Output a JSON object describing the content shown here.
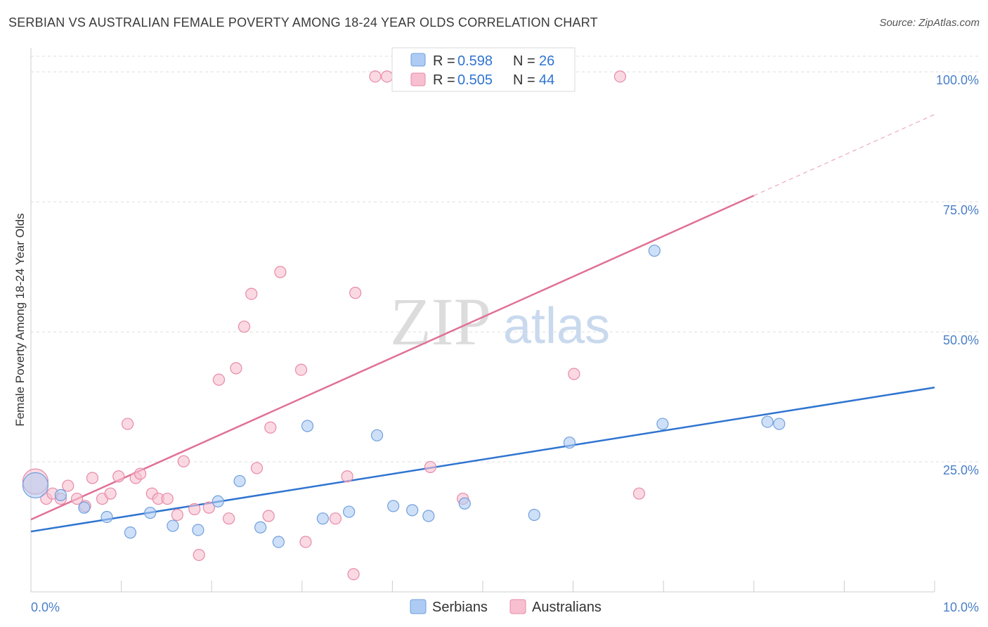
{
  "header": {
    "title": "SERBIAN VS AUSTRALIAN FEMALE POVERTY AMONG 18-24 YEAR OLDS CORRELATION CHART",
    "source": "Source: ZipAtlas.com"
  },
  "watermark": {
    "part1": "ZIP",
    "part2": "atlas"
  },
  "stats": {
    "serbians": {
      "r_label": "R =",
      "r": "0.598",
      "n_label": "N =",
      "n": "26"
    },
    "australians": {
      "r_label": "R =",
      "r": "0.505",
      "n_label": "N =",
      "n": "44"
    }
  },
  "colors": {
    "serbians_fill": "#aecbf3",
    "serbians_stroke": "#6f9fdd",
    "serbians_line": "#2f74d0",
    "australians_fill": "#f7bfd0",
    "australians_stroke": "#e88aa7",
    "australians_line": "#e07097",
    "grid": "#dddddd",
    "axis_text": "#4a7fc8"
  },
  "chart_data": {
    "type": "scatter",
    "title": "SERBIAN VS AUSTRALIAN FEMALE POVERTY AMONG 18-24 YEAR OLDS CORRELATION CHART",
    "xlabel": "",
    "ylabel": "Female Poverty Among 18-24 Year Olds",
    "xlim": [
      0,
      10
    ],
    "ylim": [
      0,
      103
    ],
    "x_tick_labels": [
      "0.0%",
      "10.0%"
    ],
    "y_ticks": [
      25,
      50,
      75,
      100
    ],
    "y_tick_labels": [
      "25.0%",
      "50.0%",
      "75.0%",
      "100.0%"
    ],
    "grid": true,
    "legend_position": "bottom-center",
    "series": [
      {
        "name": "Serbians",
        "r": 0.598,
        "n": 26,
        "trend": {
          "x0": 0,
          "y0": 11.6,
          "x1": 10,
          "y1": 39.3
        },
        "points": [
          {
            "x": 0.05,
            "y": 20.5,
            "big": true
          },
          {
            "x": 0.33,
            "y": 18.6
          },
          {
            "x": 0.59,
            "y": 16.2
          },
          {
            "x": 0.84,
            "y": 14.4
          },
          {
            "x": 1.1,
            "y": 11.4
          },
          {
            "x": 1.32,
            "y": 15.2
          },
          {
            "x": 1.57,
            "y": 12.7
          },
          {
            "x": 1.85,
            "y": 11.9
          },
          {
            "x": 2.07,
            "y": 17.4
          },
          {
            "x": 2.31,
            "y": 21.3
          },
          {
            "x": 2.54,
            "y": 12.4
          },
          {
            "x": 2.74,
            "y": 9.6
          },
          {
            "x": 3.06,
            "y": 31.9
          },
          {
            "x": 3.23,
            "y": 14.1
          },
          {
            "x": 3.52,
            "y": 15.4
          },
          {
            "x": 3.83,
            "y": 30.1
          },
          {
            "x": 4.01,
            "y": 16.5
          },
          {
            "x": 4.22,
            "y": 15.7
          },
          {
            "x": 4.4,
            "y": 14.6
          },
          {
            "x": 4.8,
            "y": 17.0
          },
          {
            "x": 5.57,
            "y": 14.8
          },
          {
            "x": 5.96,
            "y": 28.7
          },
          {
            "x": 6.9,
            "y": 65.6
          },
          {
            "x": 6.99,
            "y": 32.3
          },
          {
            "x": 8.15,
            "y": 32.7
          },
          {
            "x": 8.28,
            "y": 32.3
          }
        ]
      },
      {
        "name": "Australians",
        "r": 0.505,
        "n": 44,
        "trend": {
          "x0": 0,
          "y0": 13.9,
          "x1": 8.0,
          "y1": 76.2,
          "dash_to_x": 10,
          "dash_to_y": 91.8
        },
        "points": [
          {
            "x": 0.05,
            "y": 21.2,
            "big": true
          },
          {
            "x": 0.17,
            "y": 17.9
          },
          {
            "x": 0.24,
            "y": 18.9
          },
          {
            "x": 0.33,
            "y": 17.9
          },
          {
            "x": 0.41,
            "y": 20.4
          },
          {
            "x": 0.51,
            "y": 17.9
          },
          {
            "x": 0.6,
            "y": 16.5
          },
          {
            "x": 0.68,
            "y": 21.9
          },
          {
            "x": 0.79,
            "y": 17.9
          },
          {
            "x": 0.88,
            "y": 18.9
          },
          {
            "x": 0.97,
            "y": 22.2
          },
          {
            "x": 1.07,
            "y": 32.3
          },
          {
            "x": 1.16,
            "y": 21.9
          },
          {
            "x": 1.21,
            "y": 22.7
          },
          {
            "x": 1.34,
            "y": 18.9
          },
          {
            "x": 1.41,
            "y": 17.9
          },
          {
            "x": 1.51,
            "y": 17.9
          },
          {
            "x": 1.62,
            "y": 14.8
          },
          {
            "x": 1.69,
            "y": 25.1
          },
          {
            "x": 1.81,
            "y": 15.9
          },
          {
            "x": 1.86,
            "y": 7.1
          },
          {
            "x": 1.97,
            "y": 16.2
          },
          {
            "x": 2.08,
            "y": 40.8
          },
          {
            "x": 2.19,
            "y": 14.1
          },
          {
            "x": 2.27,
            "y": 43.0
          },
          {
            "x": 2.36,
            "y": 51.0
          },
          {
            "x": 2.44,
            "y": 57.3
          },
          {
            "x": 2.5,
            "y": 23.8
          },
          {
            "x": 2.63,
            "y": 14.6
          },
          {
            "x": 2.65,
            "y": 31.6
          },
          {
            "x": 2.76,
            "y": 61.5
          },
          {
            "x": 2.99,
            "y": 42.7
          },
          {
            "x": 3.04,
            "y": 9.6
          },
          {
            "x": 3.37,
            "y": 14.1
          },
          {
            "x": 3.5,
            "y": 22.2
          },
          {
            "x": 3.59,
            "y": 57.5
          },
          {
            "x": 3.57,
            "y": 3.4
          },
          {
            "x": 3.81,
            "y": 99.1
          },
          {
            "x": 3.94,
            "y": 99.1
          },
          {
            "x": 4.42,
            "y": 24.0
          },
          {
            "x": 6.01,
            "y": 41.9
          },
          {
            "x": 6.52,
            "y": 99.1
          },
          {
            "x": 6.73,
            "y": 18.9
          },
          {
            "x": 4.78,
            "y": 17.9
          }
        ]
      }
    ]
  }
}
